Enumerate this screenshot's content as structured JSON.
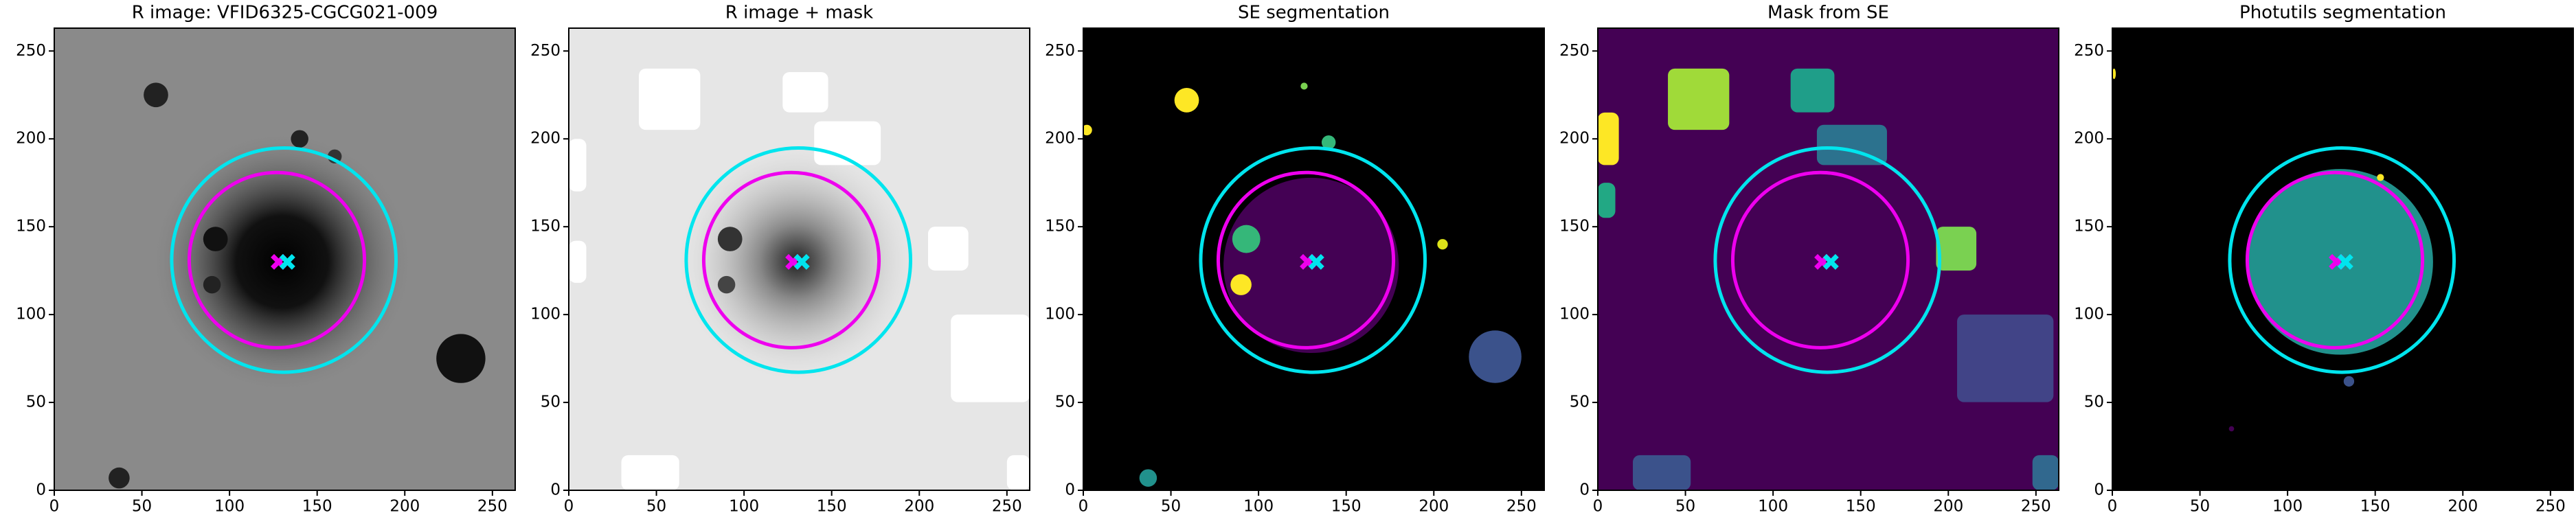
{
  "chart_data": [
    {
      "type": "image",
      "title": "R image: VFID6325-CGCG021-009",
      "background": "#8a8a8a",
      "xlim": [
        0,
        263
      ],
      "ylim": [
        0,
        263
      ],
      "xticks": [
        0,
        50,
        100,
        150,
        200,
        250
      ],
      "yticks": [
        0,
        50,
        100,
        150,
        200,
        250
      ],
      "circles": [
        {
          "color": "#00e5ee",
          "center": [
            131,
            131
          ],
          "radius": 64
        },
        {
          "color": "#ee00ee",
          "center": [
            127,
            131
          ],
          "radius": 50
        }
      ],
      "markers": [
        {
          "color": "#ee00ee",
          "x": 128,
          "y": 130
        },
        {
          "color": "#00e5ee",
          "x": 133,
          "y": 130
        }
      ]
    },
    {
      "type": "image",
      "title": "R image + mask",
      "background": "#e6e6e6",
      "xlim": [
        0,
        263
      ],
      "ylim": [
        0,
        263
      ],
      "xticks": [
        0,
        50,
        100,
        150,
        200,
        250
      ],
      "yticks": [
        0,
        50,
        100,
        150,
        200,
        250
      ],
      "circles": [
        {
          "color": "#00e5ee",
          "center": [
            131,
            131
          ],
          "radius": 64
        },
        {
          "color": "#ee00ee",
          "center": [
            127,
            131
          ],
          "radius": 50
        }
      ],
      "markers": [
        {
          "color": "#ee00ee",
          "x": 128,
          "y": 130
        },
        {
          "color": "#00e5ee",
          "x": 133,
          "y": 130
        }
      ]
    },
    {
      "type": "image",
      "title": "SE segmentation",
      "background": "#000000",
      "xlim": [
        0,
        263
      ],
      "ylim": [
        0,
        263
      ],
      "xticks": [
        0,
        50,
        100,
        150,
        200,
        250
      ],
      "yticks": [
        0,
        50,
        100,
        150,
        200,
        250
      ],
      "circles": [
        {
          "color": "#00e5ee",
          "center": [
            131,
            131
          ],
          "radius": 64
        },
        {
          "color": "#ee00ee",
          "center": [
            127,
            131
          ],
          "radius": 50
        }
      ],
      "markers": [
        {
          "color": "#ee00ee",
          "x": 128,
          "y": 130
        },
        {
          "color": "#00e5ee",
          "x": 133,
          "y": 130
        }
      ]
    },
    {
      "type": "image",
      "title": "Mask from SE",
      "background": "#440154",
      "xlim": [
        0,
        263
      ],
      "ylim": [
        0,
        263
      ],
      "xticks": [
        0,
        50,
        100,
        150,
        200,
        250
      ],
      "yticks": [
        0,
        50,
        100,
        150,
        200,
        250
      ],
      "circles": [
        {
          "color": "#00e5ee",
          "center": [
            131,
            131
          ],
          "radius": 64
        },
        {
          "color": "#ee00ee",
          "center": [
            127,
            131
          ],
          "radius": 50
        }
      ],
      "markers": [
        {
          "color": "#ee00ee",
          "x": 128,
          "y": 130
        },
        {
          "color": "#00e5ee",
          "x": 133,
          "y": 130
        }
      ]
    },
    {
      "type": "image",
      "title": "Photutils segmentation",
      "background": "#000000",
      "xlim": [
        0,
        263
      ],
      "ylim": [
        0,
        263
      ],
      "xticks": [
        0,
        50,
        100,
        150,
        200,
        250
      ],
      "yticks": [
        0,
        50,
        100,
        150,
        200,
        250
      ],
      "circles": [
        {
          "color": "#00e5ee",
          "center": [
            131,
            131
          ],
          "radius": 64
        },
        {
          "color": "#ee00ee",
          "center": [
            127,
            131
          ],
          "radius": 50
        }
      ],
      "markers": [
        {
          "color": "#ee00ee",
          "x": 128,
          "y": 130
        },
        {
          "color": "#00e5ee",
          "x": 133,
          "y": 130
        }
      ]
    }
  ]
}
